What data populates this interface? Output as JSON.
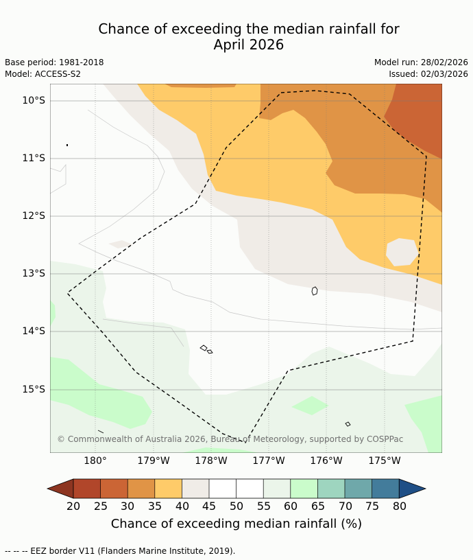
{
  "title_line1": "Chance of exceeding the median rainfall for",
  "title_line2": "April 2026",
  "base_period": "Base period: 1981-2018",
  "model": "Model: ACCESS-S2",
  "model_run": "Model run: 28/02/2026",
  "issued": "Issued: 02/03/2026",
  "copyright": "© Commonwealth of Australia 2026, Bureau of Meteorology, supported by COSPPac",
  "latitude_labels": [
    "10°S",
    "11°S",
    "12°S",
    "13°S",
    "14°S",
    "15°S"
  ],
  "longitude_labels": [
    "180°",
    "179°W",
    "178°W",
    "177°W",
    "176°W",
    "175°W"
  ],
  "colorbar": {
    "title": "Chance of exceeding median rainfall (%)",
    "ticks": [
      "20",
      "25",
      "30",
      "35",
      "40",
      "45",
      "50",
      "55",
      "60",
      "65",
      "70",
      "75",
      "80"
    ],
    "colors": [
      "#b1462a",
      "#cb6535",
      "#e09446",
      "#fecb69",
      "#f0ece7",
      "#ffffff",
      "#ffffff",
      "#ebf5ea",
      "#cafccb",
      "#9ed5bf",
      "#6fa8aa",
      "#437c9b"
    ],
    "under_color": "#8d3521",
    "over_color": "#1f4f86"
  },
  "footnote": "--  --  -- EEZ border V11 (Flanders Marine Institute, 2019)."
}
